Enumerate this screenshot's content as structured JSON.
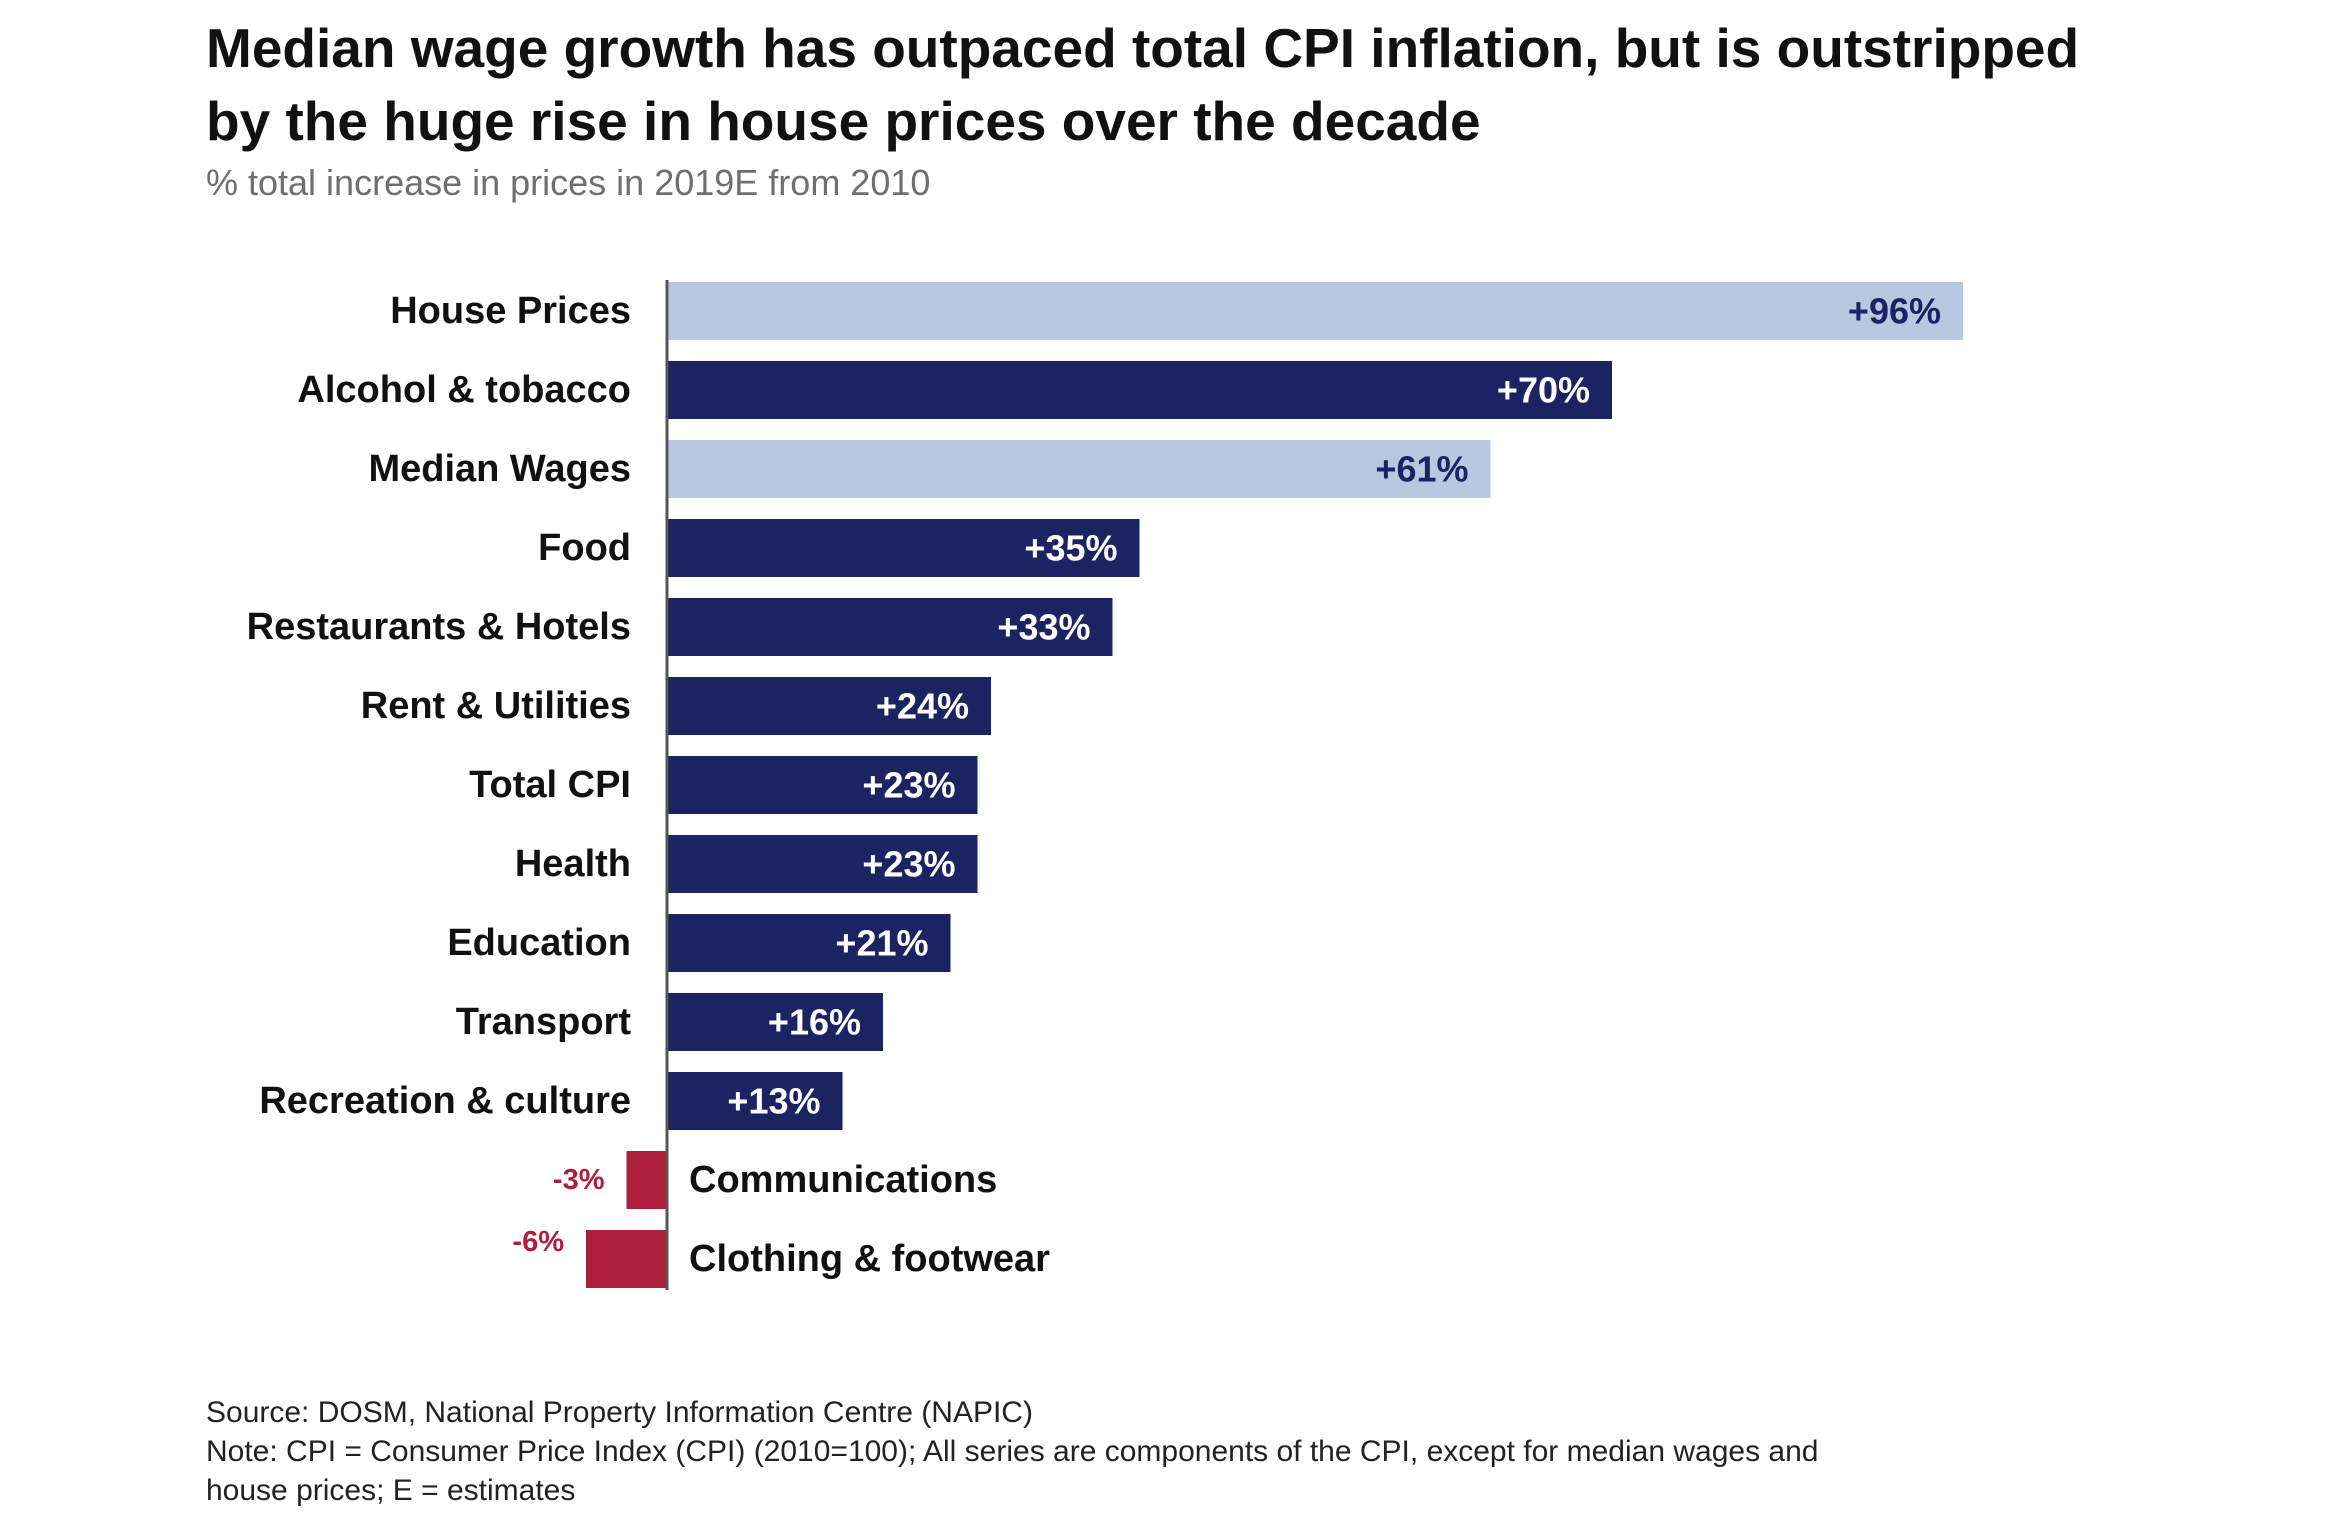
{
  "title": "Median wage growth has outpaced total CPI inflation, but is outstripped by the huge rise in house prices over the decade",
  "subtitle": "% total increase in prices in 2019E from 2010",
  "source": "Source: DOSM, National Property Information Centre (NAPIC)",
  "note_line1": "Note: CPI = Consumer Price Index (CPI) (2010=100); All series are components of the CPI, except for median wages and",
  "note_line2": "house prices; E = estimates",
  "colors": {
    "highlight": "#b7c9e1",
    "cpi_component": "#1b2362",
    "negative": "#ad1f3d",
    "highlight_label": "#1b2362",
    "bar_label": "#ffffff",
    "category_text": "#111111",
    "axis": "#555555"
  },
  "chart_data": {
    "type": "bar",
    "orientation": "horizontal",
    "categories": [
      "House Prices",
      "Alcohol & tobacco",
      "Median Wages",
      "Food",
      "Restaurants & Hotels",
      "Rent & Utilities",
      "Total CPI",
      "Health",
      "Education",
      "Transport",
      "Recreation & culture",
      "Communications",
      "Clothing & footwear"
    ],
    "values": [
      96,
      70,
      61,
      35,
      33,
      24,
      23,
      23,
      21,
      16,
      13,
      -3,
      -6
    ],
    "labels": [
      "+96%",
      "+70%",
      "+61%",
      "+35%",
      "+33%",
      "+24%",
      "+23%",
      "+23%",
      "+21%",
      "+16%",
      "+13%",
      "-3%",
      "-6%"
    ],
    "highlighted": [
      "House Prices",
      "Median Wages"
    ],
    "title": "Median wage growth has outpaced total CPI inflation, but is outstripped by the huge rise in house prices over the decade",
    "xlabel": "",
    "ylabel": "",
    "unit": "%",
    "xlim": [
      -6,
      96
    ],
    "grid": false,
    "legend": "none"
  }
}
